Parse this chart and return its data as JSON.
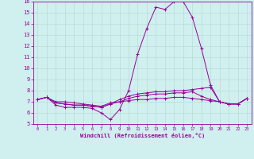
{
  "xlabel": "Windchill (Refroidissement éolien,°C)",
  "background_color": "#cff0ee",
  "grid_color": "#b8dcd8",
  "line_color": "#990099",
  "xlim": [
    -0.5,
    23.5
  ],
  "ylim": [
    5,
    16
  ],
  "yticks": [
    5,
    6,
    7,
    8,
    9,
    10,
    11,
    12,
    13,
    14,
    15,
    16
  ],
  "xticks": [
    0,
    1,
    2,
    3,
    4,
    5,
    6,
    7,
    8,
    9,
    10,
    11,
    12,
    13,
    14,
    15,
    16,
    17,
    18,
    19,
    20,
    21,
    22,
    23
  ],
  "series": [
    [
      7.2,
      7.4,
      6.7,
      6.5,
      6.5,
      6.5,
      6.4,
      6.0,
      5.4,
      6.3,
      8.0,
      11.3,
      13.6,
      15.5,
      15.3,
      16.0,
      16.0,
      14.6,
      11.8,
      8.5,
      7.0,
      6.8,
      6.8,
      7.3
    ],
    [
      7.2,
      7.4,
      6.9,
      6.8,
      6.7,
      6.7,
      6.6,
      6.5,
      6.8,
      7.2,
      7.5,
      7.7,
      7.8,
      7.9,
      7.9,
      8.0,
      8.0,
      8.1,
      8.2,
      8.3,
      7.0,
      6.8,
      6.8,
      7.3
    ],
    [
      7.2,
      7.4,
      6.9,
      6.8,
      6.7,
      6.7,
      6.6,
      6.5,
      6.8,
      7.0,
      7.3,
      7.5,
      7.6,
      7.7,
      7.7,
      7.8,
      7.8,
      7.9,
      7.5,
      7.2,
      7.0,
      6.8,
      6.8,
      7.3
    ],
    [
      7.2,
      7.4,
      7.0,
      7.0,
      6.9,
      6.8,
      6.7,
      6.6,
      6.9,
      7.0,
      7.1,
      7.2,
      7.2,
      7.3,
      7.3,
      7.4,
      7.4,
      7.3,
      7.2,
      7.1,
      7.0,
      6.8,
      6.8,
      7.3
    ]
  ]
}
